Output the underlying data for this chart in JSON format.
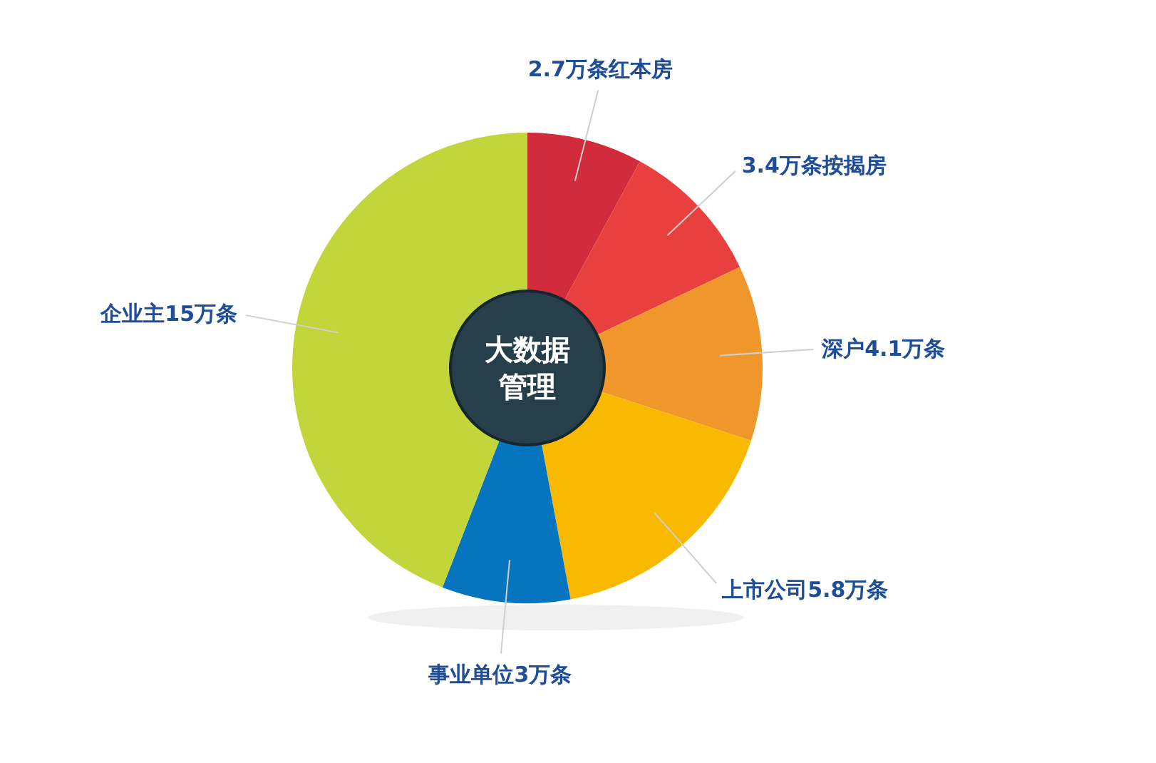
{
  "chart_data": {
    "type": "donut",
    "title": "大数据管理",
    "categories": [
      "2.7万条红本房",
      "3.4万条按揭房",
      "深户4.1万条",
      "上市公司5.8万条",
      "事业单位3万条",
      "企业主15万条"
    ],
    "values": [
      2.7,
      3.4,
      4.1,
      5.8,
      3,
      15
    ],
    "colors": [
      "#d22b3b",
      "#e8403e",
      "#f0972b",
      "#f8b900",
      "#0674be",
      "#c2d63c"
    ],
    "legend": false
  }
}
